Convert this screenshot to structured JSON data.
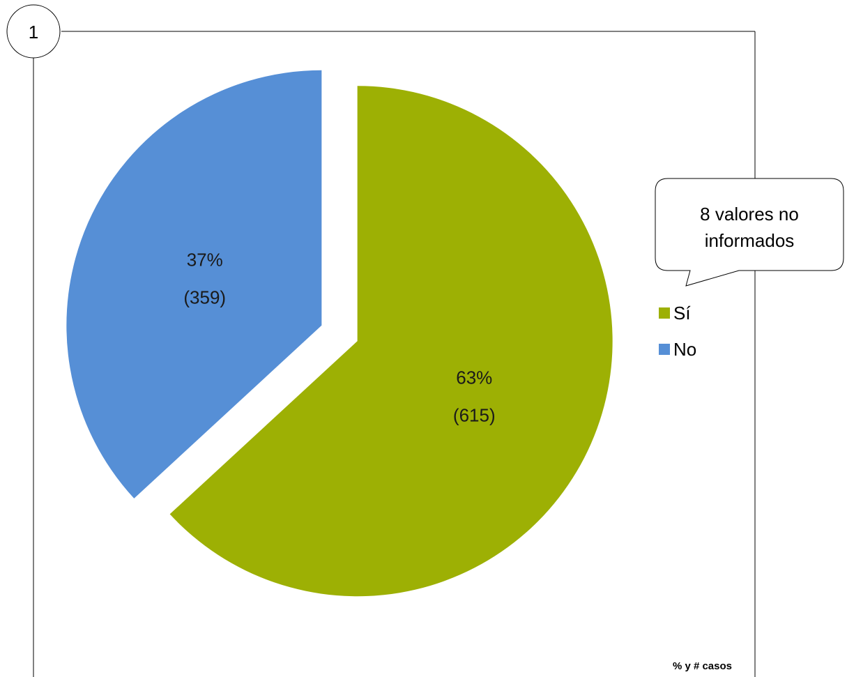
{
  "figure_number": "1",
  "callout": {
    "line1": "8 valores no",
    "line2": "informados"
  },
  "footnote": "% y # casos",
  "colors": {
    "si": "#9DB004",
    "no": "#568FD6",
    "frame": "#000000"
  },
  "chart_data": {
    "type": "pie",
    "title": "",
    "slices": [
      {
        "name": "Sí",
        "value": 615,
        "percent_label": "63%",
        "count_label": "(615)",
        "color": "#9DB004",
        "exploded": true
      },
      {
        "name": "No",
        "value": 359,
        "percent_label": "37%",
        "count_label": "(359)",
        "color": "#568FD6",
        "exploded": true
      }
    ],
    "legend": {
      "placement": "right",
      "items": [
        "Sí",
        "No"
      ]
    },
    "annotation": "8 valores no informados"
  }
}
